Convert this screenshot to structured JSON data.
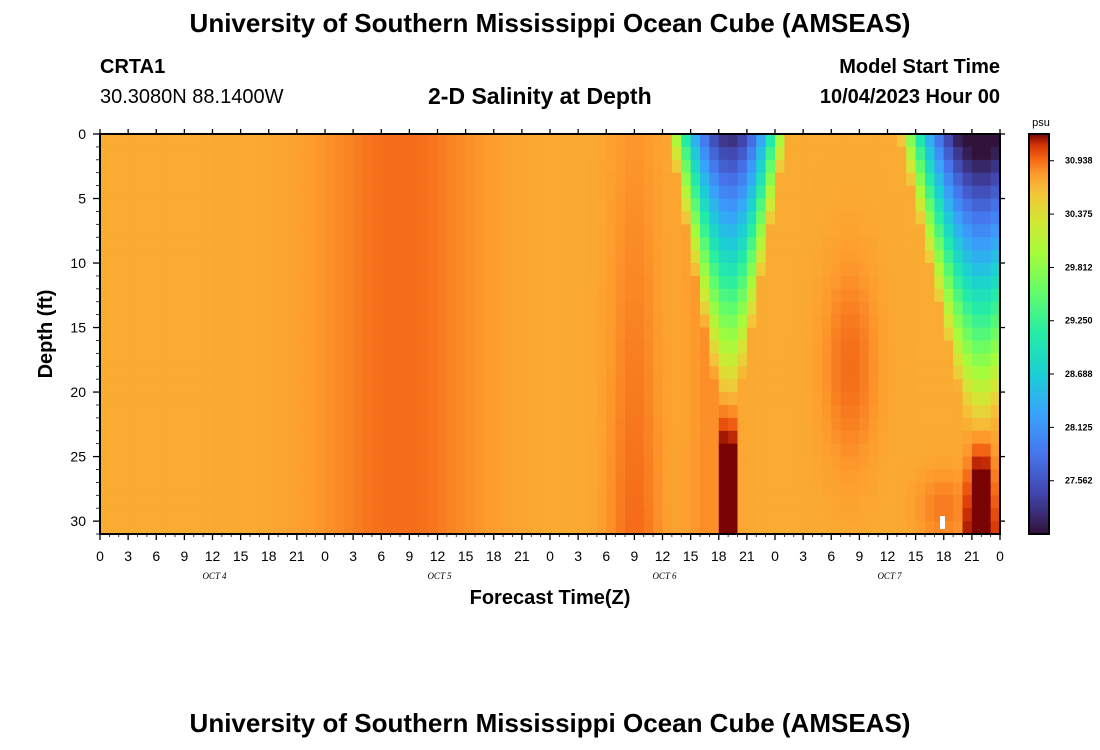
{
  "header": {
    "title": "University of Southern Mississippi Ocean Cube (AMSEAS)",
    "station": "CRTA1",
    "coordinates": "30.3080N  88.1400W",
    "subtitle": "2-D Salinity at Depth",
    "start_label": "Model Start Time",
    "start_value": "10/04/2023 Hour 00"
  },
  "footer": {
    "title": "University of Southern Mississippi Ocean Cube (AMSEAS)"
  },
  "chart_data": {
    "type": "heatmap",
    "title": "2-D Salinity at Depth",
    "xlabel": "Forecast Time(Z)",
    "ylabel": "Depth (ft)",
    "x_unit": "hours",
    "x_range": [
      0,
      96
    ],
    "x_tick_values": [
      0,
      3,
      6,
      9,
      12,
      15,
      18,
      21,
      24,
      27,
      30,
      33,
      36,
      39,
      42,
      45,
      48,
      51,
      54,
      57,
      60,
      63,
      66,
      69,
      72,
      75,
      78,
      81,
      84,
      87,
      90,
      93,
      96
    ],
    "x_tick_labels": [
      "0",
      "3",
      "6",
      "9",
      "12",
      "15",
      "18",
      "21",
      "0",
      "3",
      "6",
      "9",
      "12",
      "15",
      "18",
      "21",
      "0",
      "3",
      "6",
      "9",
      "12",
      "15",
      "18",
      "21",
      "0",
      "3",
      "6",
      "9",
      "12",
      "15",
      "18",
      "21",
      "0"
    ],
    "day_labels": [
      {
        "label": "OCT 4",
        "hour": 12
      },
      {
        "label": "OCT 5",
        "hour": 36
      },
      {
        "label": "OCT 6",
        "hour": 60
      },
      {
        "label": "OCT 7",
        "hour": 84
      }
    ],
    "y_range": [
      0,
      31
    ],
    "y_inverted": true,
    "y_tick_values": [
      0,
      5,
      10,
      15,
      20,
      25,
      30
    ],
    "y_tick_labels": [
      "0",
      "5",
      "10",
      "15",
      "20",
      "25",
      "30"
    ],
    "colorbar": {
      "unit": "psu",
      "labels": [
        "30.938",
        "30.375",
        "29.812",
        "29.250",
        "28.688",
        "28.125",
        "27.562"
      ],
      "min": 27.0,
      "max": 31.22
    },
    "colors": {
      "plot_bg": "#d9400e",
      "frame": "#000000"
    }
  }
}
